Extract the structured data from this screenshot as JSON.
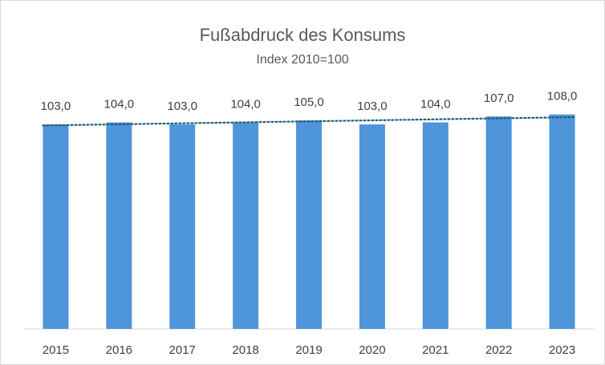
{
  "chart_data": {
    "type": "bar",
    "title": "Fußabdruck des Konsums",
    "subtitle": "Index 2010=100",
    "categories": [
      "2015",
      "2016",
      "2017",
      "2018",
      "2019",
      "2020",
      "2021",
      "2022",
      "2023"
    ],
    "values": [
      103,
      104,
      103,
      104,
      105,
      103,
      104,
      107,
      108
    ],
    "value_labels": [
      "103,0",
      "104,0",
      "103,0",
      "104,0",
      "105,0",
      "103,0",
      "104,0",
      "107,0",
      "108,0"
    ],
    "color": "#4e95d9",
    "ylim": [
      0,
      120
    ],
    "trendline": true,
    "trendline_color": "#1f5f7a"
  }
}
